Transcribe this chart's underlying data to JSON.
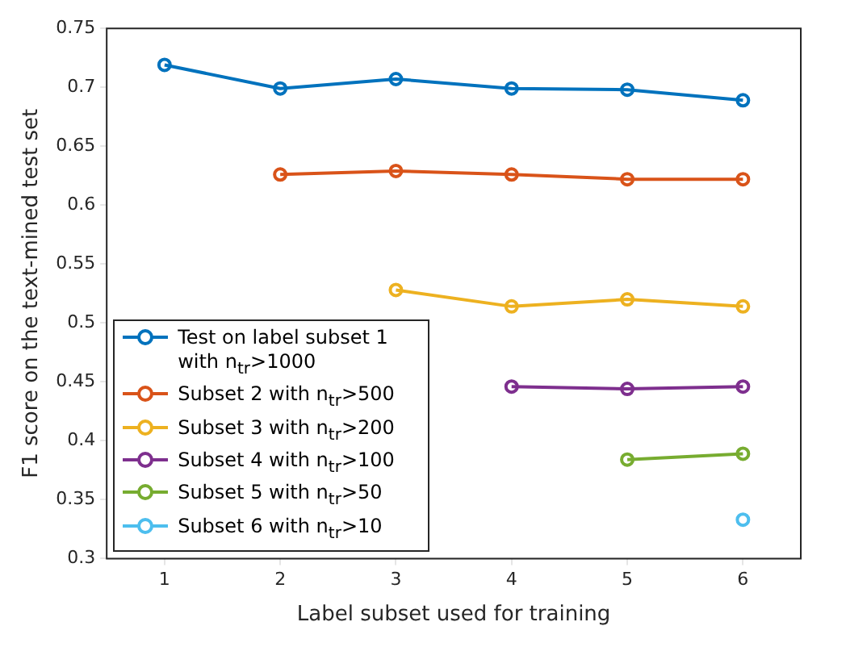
{
  "chart_data": {
    "type": "line",
    "xlabel": "Label subset used for training",
    "ylabel": "F1 score on the text-mined test set",
    "x": [
      1,
      2,
      3,
      4,
      5,
      6
    ],
    "series": [
      {
        "name": "Test on label subset 1 with n$_{tr}$>1000",
        "color": "#0072bd",
        "values": [
          0.719,
          0.699,
          0.707,
          0.699,
          0.698,
          0.689
        ]
      },
      {
        "name": "Subset 2 with n$_{tr}$>500",
        "color": "#d95319",
        "values": [
          null,
          0.626,
          0.629,
          0.626,
          0.622,
          0.622
        ]
      },
      {
        "name": "Subset 3 with n$_{tr}$>200",
        "color": "#edb120",
        "values": [
          null,
          null,
          0.528,
          0.514,
          0.52,
          0.514
        ]
      },
      {
        "name": "Subset 4 with n$_{tr}$>100",
        "color": "#7e2f8e",
        "values": [
          null,
          null,
          null,
          0.446,
          0.444,
          0.446
        ]
      },
      {
        "name": "Subset 5 with n$_{tr}$>50",
        "color": "#77ac30",
        "values": [
          null,
          null,
          null,
          null,
          0.384,
          0.389
        ]
      },
      {
        "name": "Subset 6 with n$_{tr}$>10",
        "color": "#4dbeee",
        "values": [
          null,
          null,
          null,
          null,
          null,
          0.333
        ]
      }
    ],
    "xlim": [
      0.5,
      6.5
    ],
    "xticks": [
      1,
      2,
      3,
      4,
      5,
      6
    ],
    "ylim": [
      0.3,
      0.75
    ],
    "yticks": [
      0.3,
      0.35,
      0.4,
      0.45,
      0.5,
      0.55,
      0.6,
      0.65,
      0.7,
      0.75
    ],
    "grid": false,
    "legend": "bottom left",
    "marker": "circle",
    "line_style": "solid"
  }
}
